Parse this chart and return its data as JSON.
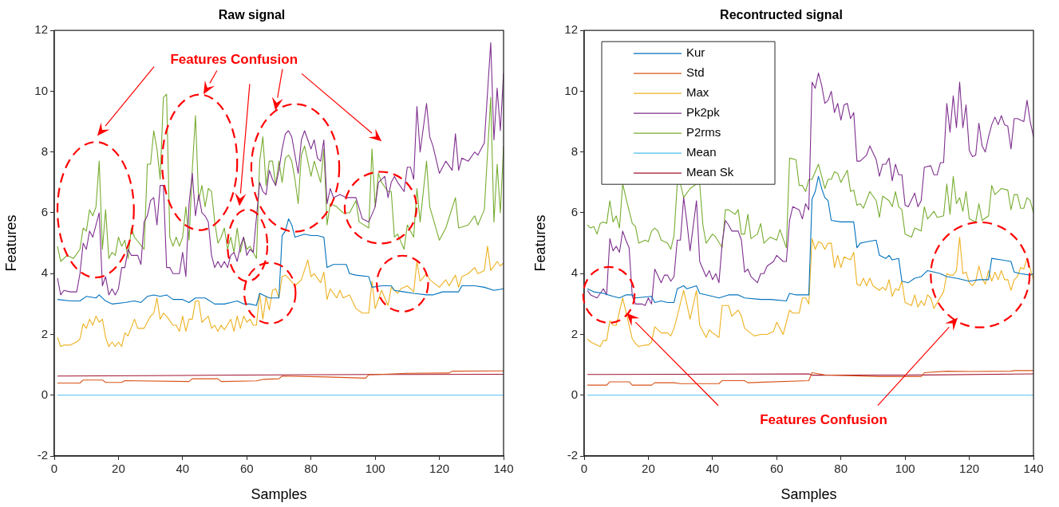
{
  "chart_data": [
    {
      "type": "line",
      "title": "Raw signal",
      "xlabel": "Samples",
      "ylabel": "Features",
      "xlim": [
        0,
        140
      ],
      "xticks": [
        0,
        20,
        40,
        60,
        80,
        100,
        120,
        140
      ],
      "ylim": [
        -2,
        12
      ],
      "yticks": [
        -2,
        0,
        2,
        4,
        6,
        8,
        10,
        12
      ],
      "marker": "none",
      "line_style": "solid",
      "annotations": [
        "Features Confusion"
      ],
      "series": [
        {
          "color": "#0072bd",
          "x": [
            1,
            5,
            8,
            10,
            13,
            14,
            16,
            18,
            22,
            25,
            27,
            29,
            31,
            33,
            35,
            37,
            40,
            42,
            44,
            47,
            50,
            53,
            55,
            57,
            59,
            61,
            63,
            64,
            67,
            70,
            71,
            72,
            73,
            74,
            75,
            78,
            80,
            82,
            84,
            85,
            87,
            91,
            92,
            94,
            98,
            99,
            102,
            105,
            106,
            109,
            112,
            116,
            118,
            121,
            126,
            127,
            131,
            134,
            137,
            140
          ],
          "values": [
            3.15,
            3.1,
            3.1,
            3.25,
            3.2,
            3.3,
            3.1,
            3.0,
            3.05,
            3.1,
            3.05,
            3.25,
            3.3,
            3.25,
            3.3,
            3.15,
            3.15,
            3.05,
            3.2,
            3.2,
            3.0,
            3.0,
            3.05,
            3.1,
            3.0,
            3.0,
            2.95,
            3.35,
            3.2,
            3.2,
            5.25,
            5.4,
            5.8,
            5.6,
            5.2,
            5.3,
            5.25,
            5.25,
            5.2,
            4.2,
            4.3,
            4.3,
            4.0,
            3.95,
            3.9,
            3.55,
            3.6,
            3.6,
            3.45,
            3.4,
            3.35,
            3.3,
            3.3,
            3.4,
            3.4,
            3.6,
            3.6,
            3.55,
            3.45,
            3.5
          ]
        },
        {
          "color": "#d95319",
          "x": [
            1,
            8,
            9,
            15,
            16,
            21,
            22,
            42,
            43,
            51,
            52,
            63,
            65,
            70,
            71,
            85,
            97,
            98,
            110,
            123,
            124,
            140
          ],
          "values": [
            0.4,
            0.4,
            0.5,
            0.5,
            0.42,
            0.42,
            0.48,
            0.45,
            0.54,
            0.54,
            0.45,
            0.47,
            0.52,
            0.54,
            0.63,
            0.6,
            0.56,
            0.67,
            0.72,
            0.73,
            0.79,
            0.8
          ]
        },
        {
          "color": "#edb120",
          "x": [
            1,
            2,
            3,
            5,
            7,
            8,
            9,
            10,
            11,
            12,
            13,
            14,
            15,
            16,
            17,
            18,
            19,
            20,
            21,
            22,
            23,
            25,
            26,
            28,
            30,
            31,
            32,
            33,
            34,
            35,
            37,
            38,
            39,
            40,
            41,
            42,
            43,
            44,
            45,
            46,
            48,
            49,
            50,
            51,
            52,
            53,
            55,
            56,
            57,
            58,
            59,
            60,
            61,
            62,
            63,
            64,
            65,
            66,
            67,
            68,
            69,
            70,
            71,
            72,
            73,
            75,
            77,
            79,
            80,
            81,
            83,
            84,
            85,
            86,
            88,
            89,
            90,
            92,
            94,
            96,
            98,
            99,
            100,
            102,
            104,
            105,
            107,
            108,
            110,
            112,
            113,
            114,
            116,
            117,
            120,
            122,
            123,
            125,
            126,
            127,
            129,
            131,
            132,
            134,
            135,
            136,
            138,
            139,
            140
          ],
          "values": [
            1.9,
            1.6,
            1.65,
            1.65,
            1.75,
            1.85,
            2.35,
            2.2,
            2.5,
            2.3,
            2.6,
            2.4,
            2.5,
            1.9,
            1.6,
            1.75,
            1.6,
            1.75,
            1.6,
            2.05,
            1.95,
            2.5,
            2.2,
            2.2,
            2.6,
            2.7,
            3.2,
            2.5,
            2.7,
            2.6,
            2.3,
            2.3,
            2.1,
            2.6,
            2.1,
            2.5,
            2.5,
            3.1,
            3.1,
            2.4,
            2.6,
            2.2,
            2.3,
            2.1,
            2.3,
            2.15,
            2.5,
            2.1,
            2.6,
            2.2,
            2.6,
            2.4,
            2.5,
            2.3,
            2.3,
            3.35,
            2.5,
            3.25,
            2.8,
            3.45,
            3.5,
            3.2,
            3.9,
            3.95,
            3.85,
            3.6,
            3.8,
            4.45,
            3.9,
            4.0,
            3.7,
            4.05,
            3.15,
            3.5,
            3.2,
            3.45,
            3.2,
            3.3,
            2.85,
            2.7,
            2.7,
            3.75,
            2.85,
            3.45,
            2.95,
            3.55,
            3.35,
            3.5,
            3.6,
            3.4,
            4.4,
            3.75,
            4.0,
            3.8,
            3.55,
            3.8,
            3.6,
            3.95,
            3.55,
            3.9,
            4.0,
            4.2,
            4.0,
            4.1,
            4.9,
            4.1,
            4.4,
            4.25,
            4.35
          ]
        },
        {
          "color": "#7e2f8e",
          "x": [
            1,
            2,
            3,
            5,
            7,
            8,
            9,
            10,
            11,
            12,
            13,
            14,
            15,
            16,
            17,
            18,
            19,
            20,
            21,
            22,
            23,
            24,
            25,
            26,
            27,
            28,
            29,
            30,
            31,
            32,
            33,
            34,
            35,
            36,
            37,
            38,
            39,
            40,
            41,
            42,
            43,
            44,
            45,
            46,
            47,
            48,
            49,
            50,
            51,
            52,
            53,
            54,
            55,
            56,
            57,
            58,
            59,
            60,
            61,
            62,
            64,
            65,
            66,
            67,
            68,
            69,
            70,
            71,
            72,
            73,
            74,
            75,
            76,
            77,
            78,
            79,
            80,
            81,
            82,
            83,
            84,
            85,
            86,
            87,
            89,
            91,
            92,
            94,
            96,
            98,
            100,
            101,
            103,
            104,
            105,
            106,
            107,
            109,
            110,
            111,
            112,
            113,
            114,
            116,
            117,
            118,
            120,
            122,
            124,
            125,
            126,
            127,
            129,
            131,
            132,
            134,
            136,
            137,
            138,
            139,
            140
          ],
          "values": [
            3.85,
            3.3,
            3.45,
            3.4,
            3.4,
            4.0,
            5.0,
            4.8,
            5.4,
            5.2,
            5.6,
            6.0,
            3.6,
            3.9,
            3.3,
            3.5,
            3.3,
            3.5,
            4.2,
            4.2,
            4.8,
            4.6,
            4.6,
            4.6,
            4.3,
            5.7,
            5.9,
            6.4,
            6.5,
            5.6,
            6.9,
            6.9,
            4.2,
            4.2,
            4.0,
            4.0,
            4.0,
            4.7,
            3.9,
            6.3,
            7.3,
            5.9,
            6.6,
            6.0,
            5.9,
            5.7,
            4.6,
            4.2,
            4.4,
            4.2,
            4.4,
            4.2,
            4.6,
            4.7,
            4.4,
            4.9,
            5.2,
            4.6,
            4.8,
            4.7,
            7.0,
            6.7,
            6.6,
            7.4,
            7.1,
            6.9,
            7.4,
            8.1,
            8.6,
            8.7,
            8.5,
            7.9,
            7.3,
            8.4,
            8.7,
            8.4,
            8.1,
            8.4,
            7.8,
            7.7,
            8.4,
            6.3,
            6.8,
            6.5,
            6.6,
            6.5,
            6.5,
            6.5,
            5.8,
            5.7,
            6.2,
            7.0,
            7.2,
            6.5,
            7.0,
            7.2,
            7.0,
            6.7,
            7.5,
            7.5,
            7.1,
            9.5,
            8.0,
            9.6,
            8.5,
            8.2,
            7.3,
            7.7,
            7.4,
            8.6,
            7.4,
            7.8,
            7.7,
            8.0,
            7.9,
            8.3,
            11.6,
            8.4,
            10.1,
            8.7,
            10.6
          ]
        },
        {
          "color": "#77ac30",
          "x": [
            1,
            2,
            4,
            6,
            8,
            9,
            10,
            11,
            12,
            13,
            14,
            15,
            16,
            17,
            18,
            19,
            20,
            21,
            22,
            23,
            24,
            25,
            28,
            29,
            30,
            31,
            32,
            33,
            34,
            35,
            36,
            37,
            38,
            39,
            40,
            41,
            42,
            43,
            44,
            45,
            46,
            47,
            48,
            49,
            50,
            51,
            52,
            53,
            54,
            55,
            56,
            57,
            58,
            59,
            60,
            61,
            62,
            63,
            64,
            65,
            66,
            67,
            68,
            69,
            70,
            71,
            72,
            73,
            74,
            75,
            76,
            77,
            78,
            80,
            81,
            83,
            84,
            85,
            86,
            88,
            90,
            92,
            94,
            95,
            98,
            99,
            100,
            101,
            102,
            104,
            105,
            106,
            107,
            109,
            110,
            112,
            113,
            114,
            116,
            117,
            120,
            122,
            125,
            126,
            129,
            131,
            132,
            134,
            136,
            137,
            138,
            139,
            140
          ],
          "values": [
            4.9,
            4.4,
            4.6,
            4.5,
            4.8,
            5.5,
            5.4,
            6.1,
            5.9,
            6.2,
            7.7,
            4.8,
            6.1,
            4.5,
            4.7,
            4.6,
            5.2,
            4.9,
            5.1,
            4.5,
            5.5,
            5.2,
            4.8,
            7.6,
            7.6,
            8.7,
            8.1,
            7.1,
            9.8,
            9.9,
            5.2,
            4.9,
            5.2,
            4.9,
            5.2,
            6.2,
            5.1,
            7.4,
            9.2,
            6.4,
            6.9,
            6.2,
            6.8,
            6.7,
            5.7,
            5.0,
            5.2,
            5.5,
            4.8,
            5.2,
            4.7,
            5.5,
            4.7,
            5.2,
            4.8,
            4.9,
            4.7,
            4.5,
            7.7,
            8.5,
            6.9,
            7.7,
            7.7,
            6.9,
            7.7,
            7.0,
            7.8,
            7.9,
            7.7,
            7.1,
            6.3,
            7.9,
            8.2,
            7.2,
            7.7,
            7.0,
            8.1,
            5.6,
            6.3,
            6.2,
            6.0,
            6.0,
            6.4,
            5.7,
            5.5,
            8.1,
            6.2,
            7.3,
            7.0,
            6.7,
            6.7,
            5.2,
            5.3,
            4.8,
            5.6,
            5.2,
            6.8,
            5.7,
            7.7,
            6.2,
            5.1,
            5.5,
            6.5,
            5.5,
            5.6,
            5.9,
            5.6,
            6.1,
            9.8,
            5.7,
            7.6,
            6.0,
            8.2
          ]
        },
        {
          "color": "#4dbeee",
          "x": [
            1,
            140
          ],
          "values": [
            0,
            0
          ]
        },
        {
          "color": "#a2142f",
          "x": [
            1,
            40,
            70,
            100,
            140
          ],
          "values": [
            0.63,
            0.65,
            0.67,
            0.68,
            0.69
          ]
        }
      ]
    },
    {
      "type": "line",
      "title": "Recontructed signal",
      "xlabel": "Samples",
      "ylabel": "Features",
      "xlim": [
        0,
        140
      ],
      "xticks": [
        0,
        20,
        40,
        60,
        80,
        100,
        120,
        140
      ],
      "ylim": [
        -2,
        12
      ],
      "yticks": [
        -2,
        0,
        2,
        4,
        6,
        8,
        10,
        12
      ],
      "marker": "none",
      "line_style": "solid",
      "legend": "top left",
      "annotations": [
        "Features Confusion"
      ],
      "series": [
        {
          "name": "Kur",
          "color": "#0072bd",
          "x": [
            1,
            3,
            6,
            9,
            11,
            13,
            15,
            16,
            21,
            22,
            24,
            26,
            28,
            29,
            31,
            32,
            35,
            36,
            40,
            42,
            45,
            48,
            50,
            55,
            58,
            63,
            64,
            66,
            70,
            71,
            72,
            73,
            74,
            75,
            76,
            77,
            80,
            81,
            84,
            85,
            86,
            88,
            91,
            92,
            94,
            95,
            96,
            98,
            99,
            101,
            103,
            105,
            107,
            109,
            111,
            113,
            116,
            120,
            123,
            126,
            127,
            130,
            133,
            134,
            136,
            139,
            140
          ],
          "values": [
            3.5,
            3.4,
            3.35,
            3.25,
            3.2,
            3.3,
            3.3,
            3.2,
            3.25,
            3.05,
            3.1,
            3.05,
            3.05,
            3.5,
            3.6,
            3.5,
            3.6,
            3.35,
            3.25,
            3.2,
            3.3,
            3.3,
            3.2,
            3.15,
            3.15,
            3.1,
            3.35,
            3.3,
            3.3,
            6.45,
            6.7,
            7.2,
            6.8,
            6.5,
            6.4,
            5.75,
            5.7,
            5.7,
            5.7,
            4.85,
            5.0,
            5.05,
            5.1,
            4.6,
            4.5,
            4.6,
            4.45,
            4.5,
            3.75,
            3.7,
            3.85,
            3.9,
            4.1,
            4.05,
            4.0,
            3.9,
            3.85,
            3.75,
            3.8,
            3.8,
            4.5,
            4.45,
            4.4,
            4.05,
            4.0,
            3.95,
            4.0
          ]
        },
        {
          "name": "Std",
          "color": "#d95319",
          "x": [
            1,
            7,
            8,
            14,
            15,
            21,
            22,
            28,
            30,
            42,
            43,
            50,
            51,
            56,
            70,
            71,
            75,
            84,
            92,
            105,
            106,
            113,
            120,
            133,
            134,
            140
          ],
          "values": [
            0.33,
            0.33,
            0.44,
            0.44,
            0.33,
            0.33,
            0.41,
            0.41,
            0.38,
            0.38,
            0.48,
            0.48,
            0.41,
            0.43,
            0.48,
            0.74,
            0.67,
            0.64,
            0.61,
            0.61,
            0.74,
            0.79,
            0.78,
            0.79,
            0.81,
            0.81
          ]
        },
        {
          "name": "Max",
          "color": "#edb120",
          "x": [
            1,
            2,
            5,
            6,
            7,
            8,
            9,
            10,
            12,
            13,
            15,
            16,
            17,
            19,
            20,
            21,
            22,
            24,
            26,
            27,
            28,
            29,
            31,
            32,
            33,
            35,
            36,
            38,
            39,
            40,
            42,
            43,
            45,
            46,
            48,
            49,
            50,
            53,
            55,
            57,
            59,
            60,
            62,
            64,
            65,
            67,
            68,
            69,
            70,
            71,
            72,
            73,
            74,
            75,
            76,
            77,
            78,
            79,
            80,
            81,
            83,
            84,
            85,
            86,
            87,
            88,
            89,
            90,
            92,
            93,
            94,
            95,
            96,
            97,
            98,
            99,
            100,
            102,
            103,
            104,
            105,
            106,
            107,
            108,
            109,
            110,
            112,
            113,
            114,
            115,
            116,
            117,
            118,
            119,
            120,
            121,
            122,
            123,
            124,
            125,
            126,
            127,
            128,
            129,
            130,
            131,
            132,
            133,
            134,
            135,
            136,
            137,
            138,
            139,
            140
          ],
          "values": [
            1.85,
            1.75,
            1.6,
            1.8,
            1.8,
            2.45,
            2.3,
            2.3,
            3.2,
            2.75,
            1.85,
            1.7,
            1.6,
            1.65,
            1.65,
            1.75,
            2.25,
            2.05,
            2.05,
            1.95,
            2.2,
            2.6,
            3.45,
            3.0,
            2.5,
            3.45,
            2.3,
            1.9,
            2.15,
            2.05,
            1.9,
            2.95,
            2.95,
            2.6,
            2.8,
            2.6,
            2.2,
            1.95,
            2.0,
            2.0,
            2.1,
            2.4,
            2.0,
            2.8,
            2.7,
            2.7,
            3.2,
            3.2,
            3.0,
            5.15,
            4.8,
            5.05,
            5.0,
            4.8,
            5.0,
            5.0,
            4.2,
            4.6,
            4.2,
            4.55,
            4.45,
            4.7,
            3.65,
            3.6,
            3.85,
            3.6,
            3.85,
            3.6,
            3.45,
            3.55,
            3.45,
            3.8,
            3.25,
            3.5,
            3.45,
            3.75,
            3.05,
            2.95,
            3.3,
            2.9,
            3.1,
            2.95,
            3.3,
            3.2,
            2.85,
            3.05,
            3.4,
            4.0,
            3.95,
            3.95,
            4.1,
            5.2,
            4.0,
            4.05,
            3.7,
            3.6,
            3.75,
            4.25,
            3.85,
            3.65,
            4.1,
            3.75,
            4.05,
            3.8,
            4.1,
            3.8,
            3.8,
            3.45,
            3.8,
            3.9,
            4.2,
            4.15,
            4.5,
            4.15,
            3.8
          ]
        },
        {
          "name": "Pk2pk",
          "color": "#7e2f8e",
          "x": [
            1,
            2,
            4,
            5,
            6,
            7,
            8,
            9,
            10,
            11,
            12,
            13,
            14,
            15,
            16,
            18,
            19,
            20,
            21,
            22,
            24,
            25,
            26,
            27,
            28,
            29,
            30,
            31,
            32,
            33,
            35,
            36,
            37,
            38,
            39,
            40,
            41,
            42,
            43,
            44,
            45,
            46,
            48,
            49,
            50,
            51,
            52,
            54,
            55,
            56,
            57,
            59,
            60,
            62,
            63,
            64,
            65,
            67,
            68,
            69,
            70,
            71,
            72,
            73,
            74,
            75,
            76,
            77,
            78,
            79,
            80,
            81,
            82,
            83,
            84,
            85,
            86,
            88,
            89,
            91,
            92,
            93,
            94,
            95,
            96,
            97,
            98,
            99,
            100,
            101,
            103,
            104,
            105,
            106,
            108,
            109,
            110,
            111,
            112,
            113,
            114,
            115,
            116,
            117,
            118,
            119,
            120,
            121,
            122,
            123,
            124,
            125,
            126,
            127,
            128,
            129,
            130,
            131,
            132,
            133,
            134,
            135,
            137,
            138,
            139,
            140
          ],
          "values": [
            3.45,
            3.3,
            3.2,
            3.35,
            3.5,
            3.3,
            5.15,
            4.75,
            4.9,
            4.7,
            5.4,
            5.1,
            4.85,
            3.25,
            3.0,
            3.0,
            2.95,
            3.2,
            3.0,
            4.15,
            3.7,
            3.95,
            3.95,
            3.75,
            3.9,
            5.1,
            5.1,
            6.5,
            5.7,
            4.75,
            6.4,
            4.4,
            4.15,
            3.9,
            4.1,
            3.8,
            4.0,
            3.7,
            5.0,
            5.75,
            5.6,
            5.4,
            5.4,
            5.1,
            4.05,
            4.15,
            3.9,
            3.7,
            4.0,
            4.0,
            4.25,
            4.4,
            4.6,
            4.4,
            4.4,
            5.75,
            6.2,
            6.1,
            5.8,
            6.3,
            6.1,
            10.3,
            10.1,
            10.6,
            10.2,
            9.6,
            9.7,
            10.0,
            9.3,
            9.6,
            9.05,
            9.55,
            9.6,
            9.1,
            9.3,
            7.7,
            7.7,
            7.9,
            8.2,
            7.75,
            7.2,
            7.6,
            7.6,
            7.8,
            7.05,
            7.6,
            7.25,
            7.25,
            6.25,
            6.2,
            6.65,
            6.2,
            6.4,
            7.5,
            7.55,
            7.25,
            7.25,
            7.65,
            7.65,
            9.6,
            8.65,
            9.85,
            8.8,
            10.3,
            8.8,
            9.55,
            8.05,
            7.85,
            7.9,
            8.95,
            8.2,
            8.0,
            8.5,
            8.9,
            9.15,
            8.9,
            9.2,
            8.9,
            8.85,
            8.1,
            9.1,
            9.1,
            9.0,
            9.7,
            9.0,
            8.5
          ]
        },
        {
          "name": "P2rms",
          "color": "#77ac30",
          "x": [
            1,
            2,
            3,
            4,
            5,
            6,
            7,
            8,
            9,
            10,
            11,
            12,
            13,
            15,
            16,
            17,
            19,
            20,
            21,
            22,
            23,
            24,
            26,
            27,
            28,
            29,
            30,
            31,
            33,
            35,
            36,
            37,
            38,
            40,
            41,
            43,
            44,
            45,
            47,
            48,
            49,
            50,
            51,
            52,
            54,
            55,
            56,
            58,
            60,
            61,
            63,
            64,
            66,
            67,
            68,
            69,
            70,
            71,
            73,
            75,
            76,
            77,
            78,
            79,
            80,
            82,
            83,
            84,
            85,
            86,
            87,
            89,
            91,
            92,
            93,
            95,
            96,
            97,
            98,
            99,
            100,
            102,
            103,
            105,
            106,
            107,
            109,
            110,
            112,
            113,
            114,
            115,
            116,
            117,
            118,
            119,
            120,
            122,
            123,
            124,
            126,
            127,
            128,
            130,
            132,
            133,
            134,
            135,
            136,
            137,
            138,
            139,
            140
          ],
          "values": [
            5.6,
            5.5,
            5.55,
            5.3,
            5.65,
            5.7,
            5.65,
            6.4,
            5.7,
            5.9,
            5.5,
            6.95,
            6.5,
            5.65,
            5.55,
            5.0,
            5.1,
            5.05,
            5.4,
            5.5,
            5.4,
            5.1,
            5.0,
            4.8,
            5.25,
            6.95,
            6.95,
            6.5,
            6.8,
            6.95,
            6.95,
            5.6,
            5.0,
            5.3,
            5.2,
            4.85,
            6.1,
            6.1,
            5.95,
            6.1,
            5.3,
            5.3,
            5.95,
            5.15,
            5.3,
            5.65,
            5.0,
            5.2,
            5.1,
            5.45,
            4.85,
            7.8,
            7.75,
            6.9,
            6.9,
            6.7,
            7.1,
            7.1,
            7.6,
            6.8,
            7.1,
            7.1,
            7.35,
            7.3,
            7.0,
            7.4,
            6.7,
            6.75,
            6.25,
            6.3,
            6.15,
            6.7,
            6.4,
            5.85,
            6.55,
            6.4,
            6.2,
            6.7,
            6.2,
            6.1,
            5.3,
            5.2,
            5.5,
            5.4,
            6.2,
            5.8,
            6.05,
            5.85,
            5.9,
            6.95,
            5.95,
            7.2,
            6.3,
            6.5,
            6.05,
            6.7,
            5.8,
            5.7,
            6.3,
            5.75,
            5.9,
            6.9,
            6.6,
            6.8,
            6.75,
            6.1,
            6.6,
            6.6,
            6.15,
            6.15,
            6.5,
            6.4,
            6.0
          ]
        },
        {
          "name": "Mean",
          "color": "#4dbeee",
          "x": [
            1,
            140
          ],
          "values": [
            0,
            0
          ]
        },
        {
          "name": "Mean Sk",
          "color": "#a2142f",
          "x": [
            1,
            70,
            71,
            100,
            140
          ],
          "values": [
            0.68,
            0.7,
            0.66,
            0.66,
            0.7
          ]
        }
      ]
    }
  ]
}
